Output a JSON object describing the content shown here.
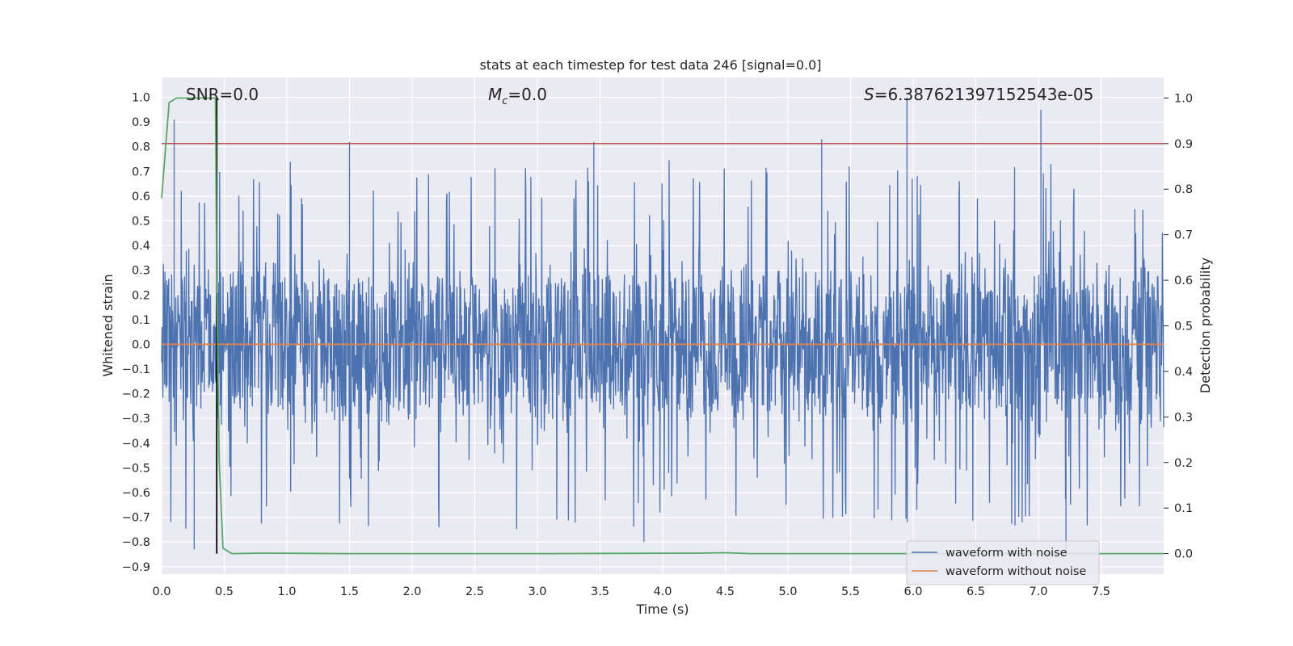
{
  "chart_data": {
    "type": "line",
    "title": "stats at each timestep for test data 246 [signal=0.0]",
    "xlabel": "Time (s)",
    "ylabel": "Whitened strain",
    "y2label": "Detection probability",
    "xlim": [
      0.0,
      8.0
    ],
    "ylim": [
      -0.93,
      1.08
    ],
    "y2lim": [
      -0.045,
      1.045
    ],
    "x_ticks": [
      0.0,
      0.5,
      1.0,
      1.5,
      2.0,
      2.5,
      3.0,
      3.5,
      4.0,
      4.5,
      5.0,
      5.5,
      6.0,
      6.5,
      7.0,
      7.5
    ],
    "x_tick_labels": [
      "0.0",
      "0.5",
      "1.0",
      "1.5",
      "2.0",
      "2.5",
      "3.0",
      "3.5",
      "4.0",
      "4.5",
      "5.0",
      "5.5",
      "6.0",
      "6.5",
      "7.0",
      "7.5"
    ],
    "y_ticks": [
      1.0,
      0.9,
      0.8,
      0.7,
      0.6,
      0.5,
      0.4,
      0.3,
      0.2,
      0.1,
      0.0,
      -0.1,
      -0.2,
      -0.3,
      -0.4,
      -0.5,
      -0.6,
      -0.7,
      -0.8,
      -0.9
    ],
    "y_tick_labels": [
      "1.0",
      "0.9",
      "0.8",
      "0.7",
      "0.6",
      "0.5",
      "0.4",
      "0.3",
      "0.2",
      "0.1",
      "0.0",
      "−0.1",
      "−0.2",
      "−0.3",
      "−0.4",
      "−0.5",
      "−0.6",
      "−0.7",
      "−0.8",
      "−0.9"
    ],
    "y2_ticks": [
      1.0,
      0.9,
      0.8,
      0.7,
      0.6,
      0.5,
      0.4,
      0.3,
      0.2,
      0.1,
      0.0
    ],
    "y2_tick_labels": [
      "1.0",
      "0.9",
      "0.8",
      "0.7",
      "0.6",
      "0.5",
      "0.4",
      "0.3",
      "0.2",
      "0.1",
      "0.0"
    ],
    "annotations": {
      "snr": "SNR=0.0",
      "mc_symbol": "M",
      "mc_subscript": "c",
      "mc_value": "=0.0",
      "s_symbol": "S",
      "s_value": "=6.387621397152543e-05"
    },
    "threshold_y2": 0.9,
    "vertical_marker_x": 0.44,
    "series": [
      {
        "name": "waveform with noise",
        "color": "#4c72b0",
        "axis": "left",
        "kind": "noise",
        "typical_range": [
          -0.4,
          0.4
        ],
        "peak_max": 1.0,
        "peak_min": -0.84
      },
      {
        "name": "waveform without noise",
        "color": "#dd8452",
        "axis": "left",
        "kind": "constant",
        "value": 0.0
      },
      {
        "name": "detection probability",
        "color": "#55a868",
        "axis": "right",
        "kind": "line",
        "x": [
          0.0,
          0.06,
          0.12,
          0.2,
          0.3,
          0.43,
          0.44,
          0.46,
          0.49,
          0.56,
          0.8,
          1.5,
          3.0,
          4.3,
          4.5,
          4.7,
          6.0,
          7.0,
          8.0
        ],
        "values": [
          0.78,
          0.99,
          1.0,
          1.0,
          1.0,
          1.0,
          0.6,
          0.2,
          0.012,
          0.0,
          0.001,
          0.0,
          0.0,
          0.001,
          0.002,
          0.0,
          0.0,
          0.0,
          0.0
        ]
      },
      {
        "name": "threshold",
        "color": "#c44e52",
        "axis": "right",
        "kind": "hline",
        "value": 0.9
      },
      {
        "name": "marker",
        "color": "#000000",
        "axis": "left",
        "kind": "vline"
      }
    ],
    "legend": {
      "placement": "lower right",
      "entries": [
        "waveform with noise",
        "waveform without noise"
      ]
    }
  }
}
